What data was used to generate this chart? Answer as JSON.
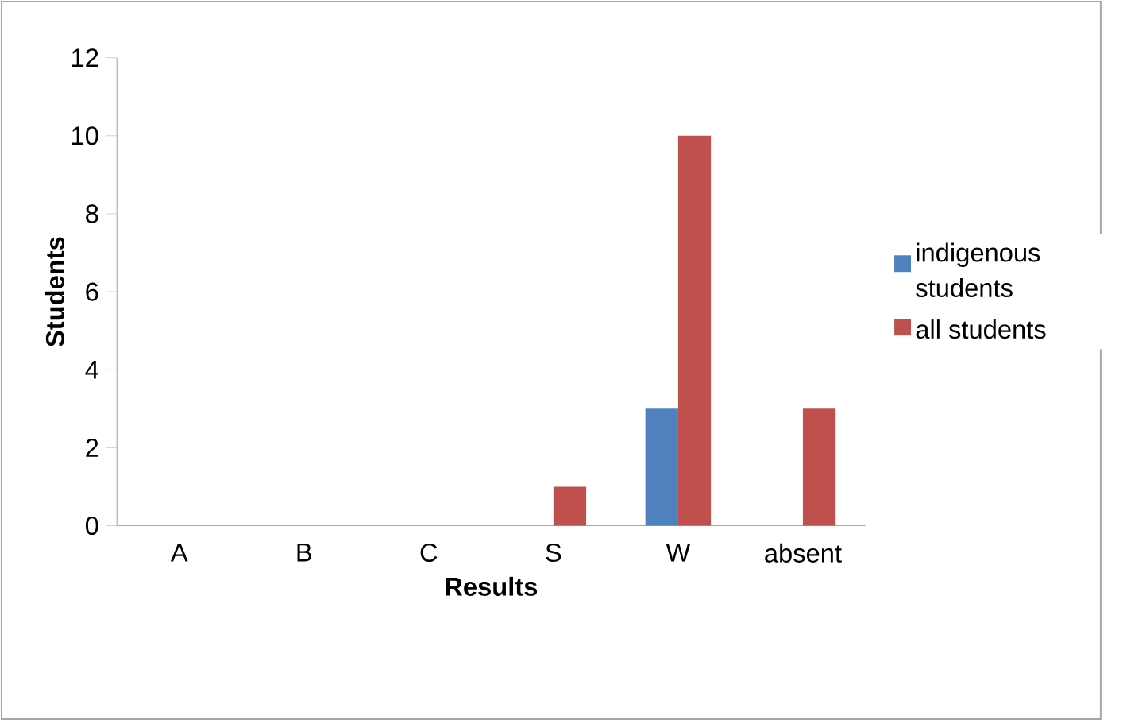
{
  "chart_data": {
    "type": "bar",
    "xlabel": "Results",
    "ylabel": "Students",
    "categories": [
      "A",
      "B",
      "C",
      "S",
      "W",
      "absent"
    ],
    "series": [
      {
        "name": "indigenous students",
        "color": "#4f81bd",
        "values": [
          0,
          0,
          0,
          0,
          3,
          0
        ]
      },
      {
        "name": "all students",
        "color": "#c0504d",
        "values": [
          0,
          0,
          0,
          1,
          10,
          3
        ]
      }
    ],
    "ylim": [
      0,
      12
    ],
    "yticks": [
      0,
      2,
      4,
      6,
      8,
      10,
      12
    ],
    "grid": false,
    "legend": "right"
  }
}
